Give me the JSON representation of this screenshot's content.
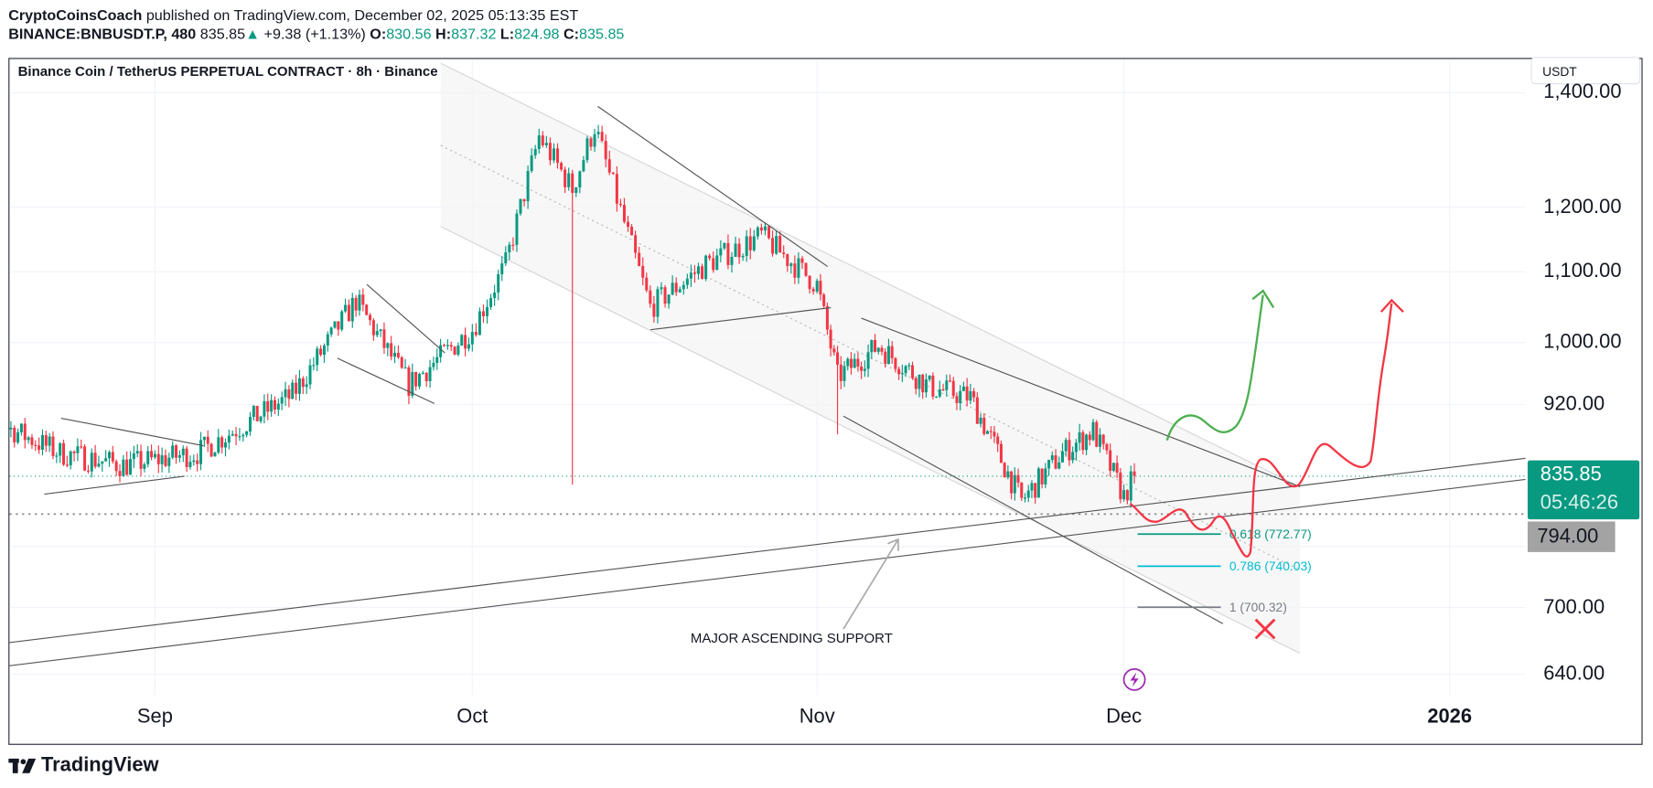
{
  "header": {
    "author": "CryptoCoinsCoach",
    "published": "published on TradingView.com, December 02, 2025 05:13:35 EST",
    "symbol": "BINANCE:BNBUSDT.P, 480",
    "price": "835.85",
    "change": "+9.38 (+1.13%)",
    "o_label": "O:",
    "o": "830.56",
    "h_label": "H:",
    "h": "837.32",
    "l_label": "L:",
    "l": "824.98",
    "c_label": "C:",
    "c": "835.85"
  },
  "chart_title": "Binance Coin / TetherUS PERPETUAL CONTRACT · 8h · Binance",
  "currency_button": "USDT",
  "last_price": {
    "value": "835.85",
    "countdown": "05:46:26"
  },
  "level_label": "794.00",
  "brand": "TradingView",
  "colors": {
    "up": "#089981",
    "down": "#f23645",
    "fib_618": "#089981",
    "fib_786": "#00bcd4",
    "fib_1": "#787b86",
    "projection_bull": "#4caf50",
    "projection_bear": "#f23645"
  },
  "chart_data": {
    "type": "candlestick",
    "interval": "8h",
    "scale": "log",
    "ylim": [
      620,
      1450
    ],
    "grid": true,
    "y_ticks": [
      "1,400.00",
      "1,200.00",
      "1,100.00",
      "1,000.00",
      "920.00",
      "794.00",
      "700.00",
      "640.00"
    ],
    "x_ticks": [
      "Sep",
      "Oct",
      "Nov",
      "Dec",
      "2026"
    ],
    "price_path": [
      [
        "2025-08-14",
        838
      ],
      [
        "2025-08-18",
        892
      ],
      [
        "2025-08-23",
        862
      ],
      [
        "2025-08-29",
        848
      ],
      [
        "2025-09-05",
        862
      ],
      [
        "2025-09-14",
        932
      ],
      [
        "2025-09-20",
        1058
      ],
      [
        "2025-09-25",
        945
      ],
      [
        "2025-10-01",
        1018
      ],
      [
        "2025-10-04",
        1111
      ],
      [
        "2025-10-07",
        1320
      ],
      [
        "2025-10-10",
        1230
      ],
      [
        "2025-10-12",
        1338
      ],
      [
        "2025-10-17",
        1049
      ],
      [
        "2025-10-22",
        1111
      ],
      [
        "2025-10-27",
        1155
      ],
      [
        "2025-11-01",
        1081
      ],
      [
        "2025-11-03",
        955
      ],
      [
        "2025-11-07",
        996
      ],
      [
        "2025-11-12",
        942
      ],
      [
        "2025-11-16",
        929
      ],
      [
        "2025-11-21",
        808
      ],
      [
        "2025-11-25",
        862
      ],
      [
        "2025-11-28",
        888
      ],
      [
        "2025-12-01",
        813
      ],
      [
        "2025-12-02",
        835.85
      ]
    ],
    "wicks": [
      [
        "2025-10-10",
        826
      ],
      [
        "2025-11-03",
        884
      ]
    ],
    "last": 835.85,
    "horizontal_levels": [
      794.0
    ],
    "fib_levels": [
      {
        "label": "0.618 (772.77)",
        "price": 772.77
      },
      {
        "label": "0.786 (740.03)",
        "price": 740.03
      },
      {
        "label": "1 (700.32)",
        "price": 700.32
      }
    ],
    "annotations": [
      "MAJOR ASCENDING SUPPORT"
    ]
  }
}
